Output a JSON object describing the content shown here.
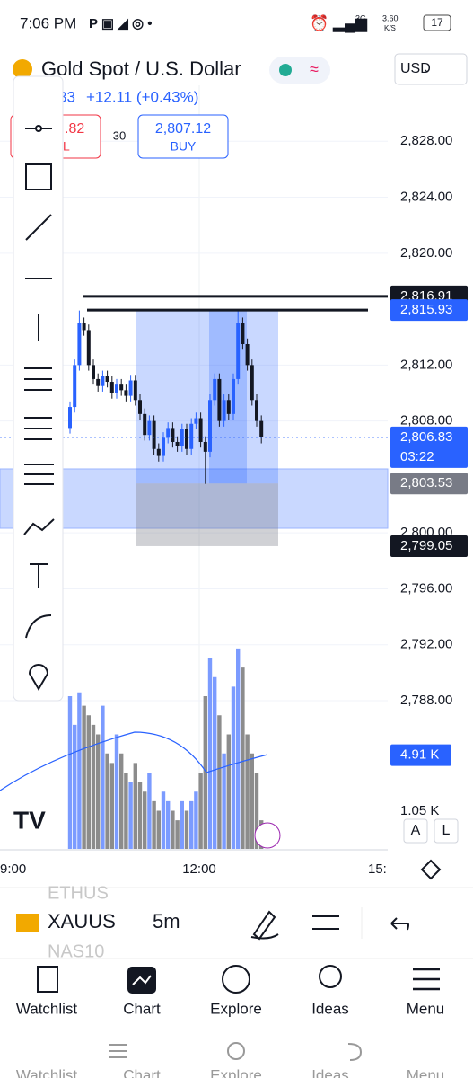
{
  "status": {
    "time": "7:06 PM",
    "network": "3G",
    "speed": "3.60",
    "speed_unit": "K/S",
    "battery": "17"
  },
  "header": {
    "title": "Gold Spot / U.S. Dollar",
    "currency": "USD",
    "price_partial": "83",
    "change": "+12.11 (+0.43%)"
  },
  "trade": {
    "sell_partial": ".82",
    "sell_label": "L",
    "quantity": "30",
    "buy_price": "2,807.12",
    "buy_label": "BUY"
  },
  "chart": {
    "ylim": [
      2777.4,
      2832
    ],
    "yticks": [
      {
        "value": 2828,
        "label": "2,828.00"
      },
      {
        "value": 2824,
        "label": "2,824.00"
      },
      {
        "value": 2820,
        "label": "2,820.00"
      },
      {
        "value": 2812,
        "label": "2,812.00"
      },
      {
        "value": 2808,
        "label": "2,808.00"
      },
      {
        "value": 2800,
        "label": "2,800.00"
      },
      {
        "value": 2796,
        "label": "2,796.00"
      },
      {
        "value": 2792,
        "label": "2,792.00"
      },
      {
        "value": 2788,
        "label": "2,788.00"
      }
    ],
    "price_tags": [
      {
        "value": 2816.91,
        "label": "2,816.91",
        "color": "#131722"
      },
      {
        "value": 2815.93,
        "label": "2,815.93",
        "color": "#2962ff"
      },
      {
        "value": 2806.83,
        "label": "2,806.83",
        "color": "#2962ff"
      },
      {
        "value": 2803.53,
        "label": "2,803.53",
        "color": "#787b86"
      },
      {
        "value": 2799.05,
        "label": "2,799.05",
        "color": "#131722"
      }
    ],
    "countdown": "03:22",
    "up_color": "#2962ff",
    "down_color": "#131722",
    "candles": [
      [
        2807.5,
        2809.4,
        2807.1,
        2809
      ],
      [
        2809,
        2812.4,
        2808.6,
        2812
      ],
      [
        2812,
        2815.9,
        2811.6,
        2815
      ],
      [
        2815,
        2815.4,
        2814.1,
        2814.5
      ],
      [
        2814.5,
        2814.9,
        2811.6,
        2812
      ],
      [
        2812,
        2812.4,
        2810.6,
        2811
      ],
      [
        2811,
        2811.4,
        2810.1,
        2810.5
      ],
      [
        2810.5,
        2811.6,
        2810.1,
        2811.2
      ],
      [
        2811.2,
        2811.6,
        2810.4,
        2810.8
      ],
      [
        2810.8,
        2811.2,
        2809.6,
        2810
      ],
      [
        2810,
        2811,
        2809.6,
        2810.6
      ],
      [
        2810.6,
        2811,
        2809.8,
        2810.2
      ],
      [
        2810.2,
        2810.6,
        2809.4,
        2809.8
      ],
      [
        2809.8,
        2811.3,
        2809.4,
        2810.9
      ],
      [
        2810.9,
        2811.3,
        2809.1,
        2809.5
      ],
      [
        2809.5,
        2809.9,
        2808.1,
        2808.5
      ],
      [
        2808.5,
        2808.9,
        2806.6,
        2807
      ],
      [
        2807,
        2808.4,
        2806.6,
        2808
      ],
      [
        2808,
        2808.4,
        2805.6,
        2806
      ],
      [
        2806,
        2806.4,
        2805.1,
        2805.5
      ],
      [
        2805.5,
        2807.2,
        2805.1,
        2806.8
      ],
      [
        2806.8,
        2807.9,
        2806.4,
        2807.5
      ],
      [
        2807.5,
        2807.9,
        2806.1,
        2806.5
      ],
      [
        2806.5,
        2806.9,
        2805.8,
        2806.2
      ],
      [
        2806.2,
        2807.8,
        2805.8,
        2807.4
      ],
      [
        2807.4,
        2807.8,
        2805.6,
        2806
      ],
      [
        2806,
        2808.2,
        2805.6,
        2807.8
      ],
      [
        2807.8,
        2808.6,
        2807.4,
        2808.2
      ],
      [
        2808.2,
        2808.6,
        2806.1,
        2806.5
      ],
      [
        2806.5,
        2806.9,
        2803.5,
        2805.8
      ],
      [
        2805.8,
        2809.9,
        2805.4,
        2809.5
      ],
      [
        2809.5,
        2811.4,
        2809.1,
        2811
      ],
      [
        2811,
        2811.4,
        2807.6,
        2808
      ],
      [
        2808,
        2809.9,
        2807.6,
        2809.5
      ],
      [
        2809.5,
        2809.9,
        2808.1,
        2808.5
      ],
      [
        2808.5,
        2811.4,
        2808.1,
        2811
      ],
      [
        2811,
        2815.9,
        2810.6,
        2815
      ],
      [
        2815,
        2815.4,
        2813.1,
        2813.5
      ],
      [
        2813.5,
        2813.9,
        2811.6,
        2812
      ],
      [
        2812,
        2812.4,
        2809.1,
        2809.5
      ],
      [
        2809.5,
        2809.9,
        2807.6,
        2808
      ],
      [
        2808,
        2808.4,
        2806.4,
        2806.83
      ]
    ],
    "vlim": [
      0,
      40
    ],
    "volumes": [
      8,
      6.5,
      8.2,
      7.5,
      7,
      6.5,
      6,
      7.5,
      5,
      4.5,
      6,
      5,
      4,
      3.5,
      4.5,
      3.5,
      3,
      4,
      2.5,
      2,
      3,
      2.5,
      2,
      1.5,
      2.5,
      2,
      2.5,
      3,
      4,
      8,
      10,
      9,
      7,
      5,
      6,
      8.5,
      10.5,
      9.5,
      6,
      5,
      4,
      1.5
    ],
    "volume_tag": {
      "value": 4.91,
      "label": "4.91 K"
    },
    "volume_partial": "1.05 K",
    "time_labels": [
      "9:00",
      "12:00",
      "15:"
    ],
    "scale_buttons": [
      "A",
      "L"
    ]
  },
  "toolbar": {
    "symbols": [
      "ETHUS",
      "XAUUS",
      "NAS10"
    ],
    "interval": "5m"
  },
  "nav": [
    "Watchlist",
    "Chart",
    "Explore",
    "Ideas",
    "Menu"
  ],
  "ghost_nav": [
    "Watchlist",
    "Chart",
    "Explore",
    "Ideas",
    "Menu"
  ]
}
